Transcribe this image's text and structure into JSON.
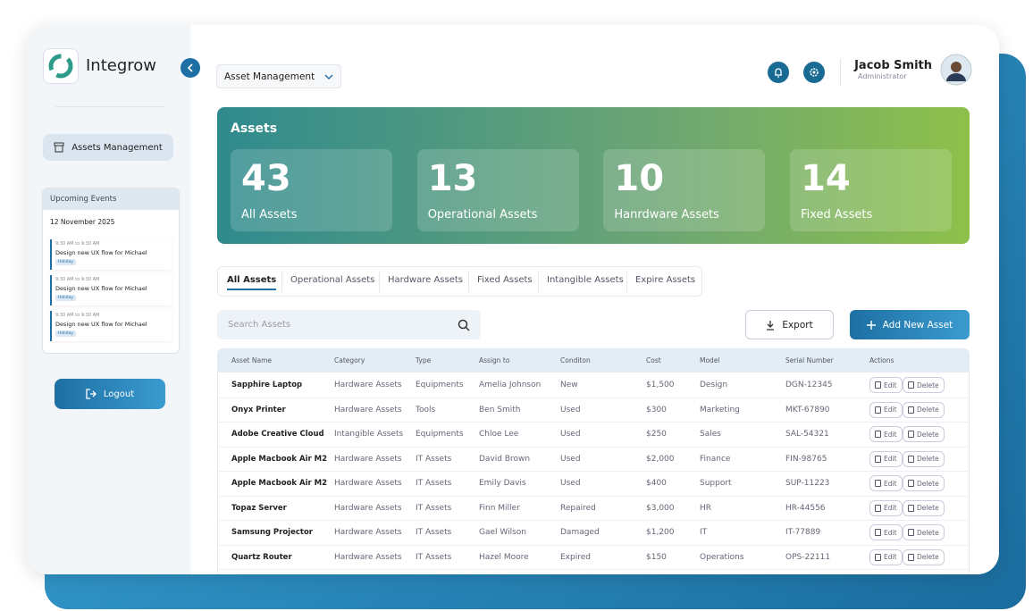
{
  "sidebar": {
    "brand": "Integrow",
    "nav": [
      "Assets Management"
    ],
    "events": {
      "title": "Upcoming Events",
      "date": "12 November 2025",
      "items": [
        {
          "time": "9:30 AM to 9:30 AM",
          "title": "Design new UX flow for Michael",
          "tag": "Holiday"
        },
        {
          "time": "9:30 AM to 9:30 AM",
          "title": "Design new UX flow for Michael",
          "tag": "Holiday"
        },
        {
          "time": "9:30 AM to 9:30 AM",
          "title": "Design new UX flow for Michael",
          "tag": "Holiday"
        }
      ]
    },
    "logout": "Logout"
  },
  "header": {
    "dropdown": "Asset Management",
    "user": {
      "name": "Jacob Smith",
      "role": "Administrator"
    }
  },
  "banner": {
    "title": "Assets",
    "stats": [
      {
        "value": 43,
        "label": "All Assets"
      },
      {
        "value": 13,
        "label": "Operational Assets"
      },
      {
        "value": 10,
        "label": "Hanrdware Assets"
      },
      {
        "value": 14,
        "label": "Fixed Assets"
      }
    ]
  },
  "tabs": [
    "All Assets",
    "Operational Assets",
    "Hardware Assets",
    "Fixed Assets",
    "Intangible Assets",
    "Expire Assets"
  ],
  "search": {
    "placeholder": "Search Assets"
  },
  "buttons": {
    "export": "Export",
    "add": "Add New Asset"
  },
  "table": {
    "columns": [
      "Asset Name",
      "Category",
      "Type",
      "Assign to",
      "Conditon",
      "Cost",
      "Model",
      "Serial Number",
      "Actions"
    ],
    "actions": [
      "Edit",
      "Delete"
    ],
    "rows": [
      [
        "Sapphire Laptop",
        "Hardware Assets",
        "Equipments",
        "Amelia Johnson",
        "New",
        "$1,500",
        "Design",
        "DGN-12345"
      ],
      [
        "Onyx Printer",
        "Hardware Assets",
        "Tools",
        "Ben Smith",
        "Used",
        "$300",
        "Marketing",
        "MKT-67890"
      ],
      [
        "Adobe Creative Cloud",
        "Intangible Assets",
        "Equipments",
        "Chloe Lee",
        "Used",
        "$250",
        "Sales",
        "SAL-54321"
      ],
      [
        "Apple Macbook Air M2",
        "Hardware Assets",
        "IT Assets",
        "David Brown",
        "Used",
        "$2,000",
        "Finance",
        "FIN-98765"
      ],
      [
        "Apple Macbook Air M2",
        "Hardware Assets",
        "IT Assets",
        "Emily Davis",
        "Used",
        "$400",
        "Support",
        "SUP-11223"
      ],
      [
        "Topaz Server",
        "Hardware Assets",
        "IT Assets",
        "Finn Miller",
        "Repaired",
        "$3,000",
        "HR",
        "HR-44556"
      ],
      [
        "Samsung Projector",
        "Hardware Assets",
        "IT Assets",
        "Gael Wilson",
        "Damaged",
        "$1,200",
        "IT",
        "IT-77889"
      ],
      [
        "Quartz Router",
        "Hardware Assets",
        "IT Assets",
        "Hazel Moore",
        "Expired",
        "$150",
        "Operations",
        "OPS-22111"
      ]
    ]
  }
}
